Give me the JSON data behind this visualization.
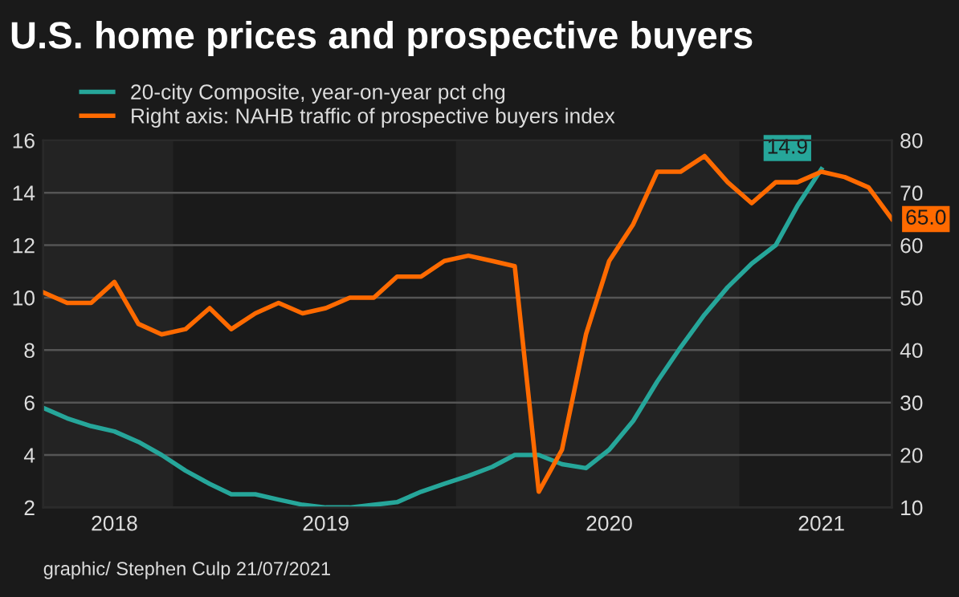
{
  "chart_data": {
    "type": "line",
    "title": "U.S. home prices and prospective buyers",
    "x": [
      "2018-07",
      "2018-08",
      "2018-09",
      "2018-10",
      "2018-11",
      "2018-12",
      "2019-01",
      "2019-02",
      "2019-03",
      "2019-04",
      "2019-05",
      "2019-06",
      "2019-07",
      "2019-08",
      "2019-09",
      "2019-10",
      "2019-11",
      "2019-12",
      "2020-01",
      "2020-02",
      "2020-03",
      "2020-04",
      "2020-05",
      "2020-06",
      "2020-07",
      "2020-08",
      "2020-09",
      "2020-10",
      "2020-11",
      "2020-12",
      "2021-01",
      "2021-02",
      "2021-03",
      "2021-04",
      "2021-05",
      "2021-06",
      "2021-07"
    ],
    "series": [
      {
        "name": "20-city Composite, year-on-year pct chg",
        "color": "#26a69a",
        "values": [
          5.8,
          5.4,
          5.1,
          4.9,
          4.5,
          4.0,
          3.4,
          2.9,
          2.5,
          2.5,
          2.3,
          2.1,
          2.0,
          2.0,
          2.1,
          2.2,
          2.6,
          2.9,
          3.2,
          3.55,
          4.0,
          4.0,
          3.65,
          3.5,
          4.2,
          5.3,
          6.8,
          8.1,
          9.35,
          10.4,
          11.3,
          12.0,
          13.5,
          14.9,
          null,
          null,
          null
        ],
        "value_labels": [
          null,
          null,
          null,
          null,
          null,
          null,
          null,
          null,
          null,
          null,
          null,
          null,
          null,
          null,
          null,
          null,
          null,
          null,
          null,
          null,
          null,
          null,
          null,
          null,
          null,
          null,
          null,
          null,
          null,
          null,
          null,
          null,
          null,
          "14.9",
          null,
          null,
          null
        ]
      },
      {
        "name": "Right axis: NAHB traffic of prospective buyers index",
        "color": "#ff6a00",
        "axis": "y2",
        "values": [
          51,
          49,
          49,
          53,
          45,
          43,
          44,
          48,
          44,
          47,
          49,
          47,
          48,
          50,
          50,
          54,
          54,
          57,
          58,
          57,
          56,
          13,
          21,
          43,
          57,
          64,
          74,
          74,
          77,
          72,
          68,
          72,
          72,
          74,
          73,
          71,
          65
        ],
        "value_labels": [
          null,
          null,
          null,
          null,
          null,
          null,
          null,
          null,
          null,
          null,
          null,
          null,
          null,
          null,
          null,
          null,
          null,
          null,
          null,
          null,
          null,
          null,
          null,
          null,
          null,
          null,
          null,
          null,
          null,
          null,
          null,
          null,
          null,
          null,
          null,
          null,
          "65.0"
        ]
      }
    ],
    "xlim": [
      "2018-07",
      "2021-07"
    ],
    "xticks": [
      {
        "value": "2018-10",
        "label": "2018"
      },
      {
        "value": "2019-07",
        "label": "2019"
      },
      {
        "value": "2020-07",
        "label": "2020"
      },
      {
        "value": "2021-04",
        "label": "2021"
      }
    ],
    "ylim": [
      2,
      16
    ],
    "yticks": [
      2,
      4,
      6,
      8,
      10,
      12,
      14,
      16
    ],
    "y2lim": [
      10,
      80
    ],
    "y2ticks": [
      10,
      20,
      30,
      40,
      50,
      60,
      70,
      80
    ],
    "bands": [
      {
        "axis": "x",
        "from": "2018-07-01",
        "to": "2018-12-16",
        "color": "#232323"
      },
      {
        "axis": "x",
        "from": "2019-12-16",
        "to": "2020-12-16",
        "color": "#232323"
      }
    ],
    "grid": "y",
    "legend": "top left",
    "marker": "none",
    "line_style": "solid",
    "annotations": [
      "graphic/ Stephen Culp 21/07/2021"
    ]
  }
}
